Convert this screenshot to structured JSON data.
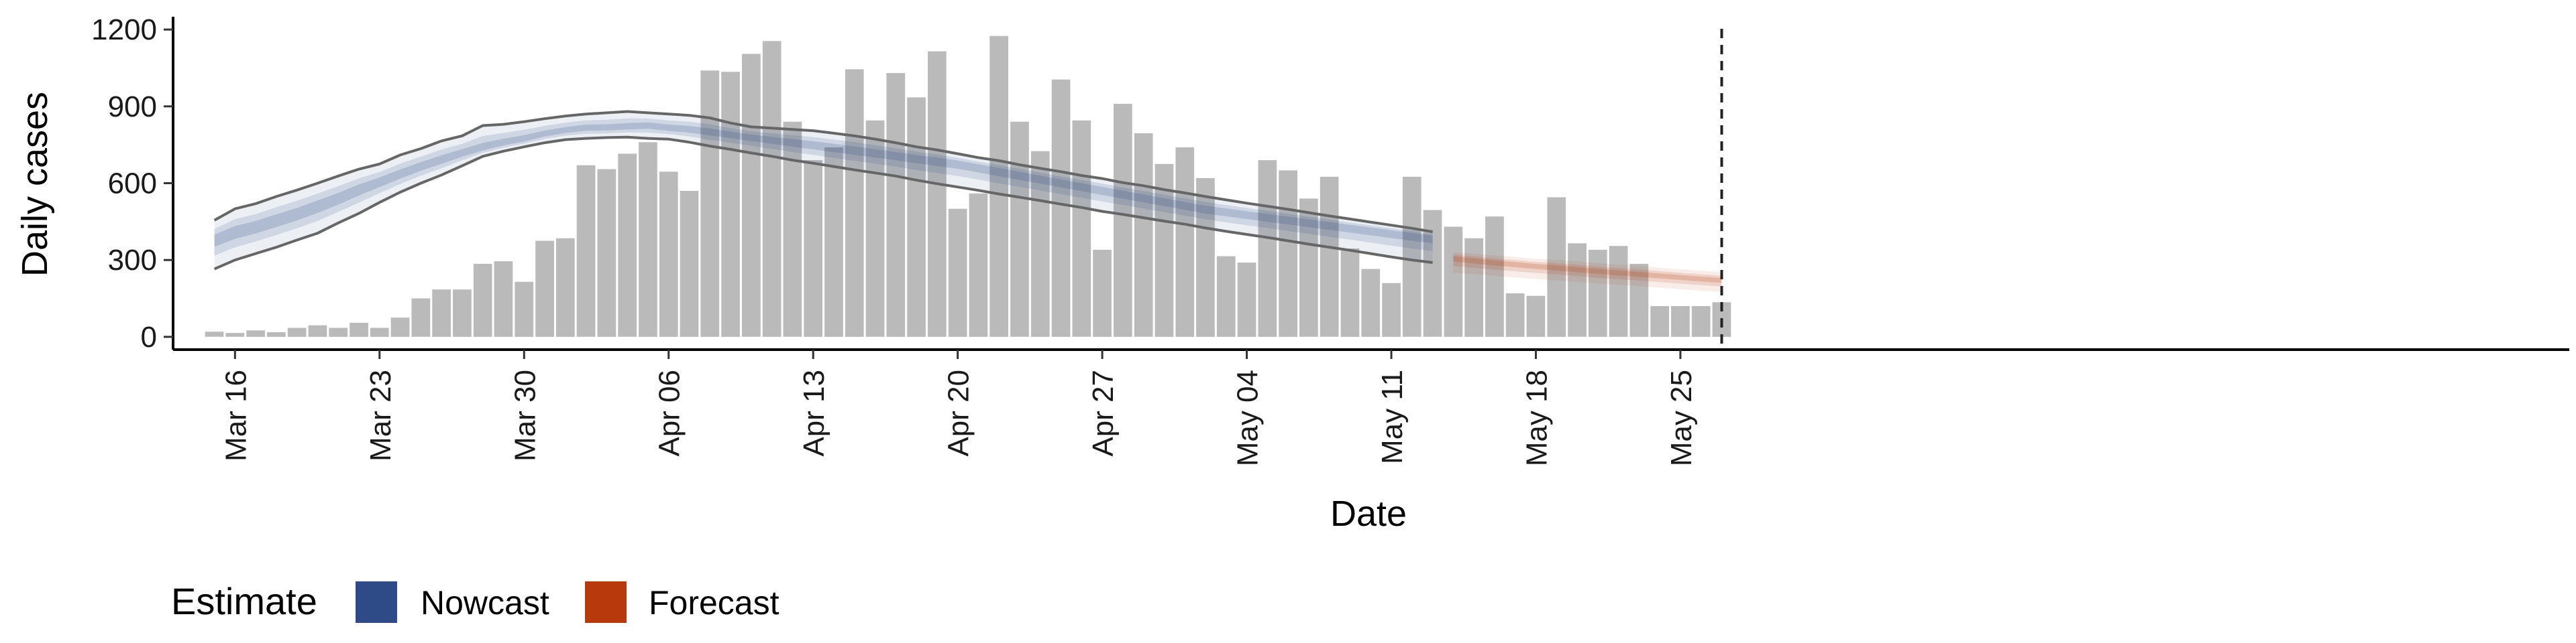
{
  "chart_data": {
    "type": "bar",
    "xlabel": "Date",
    "ylabel": "Daily cases",
    "ylim": [
      -50,
      1250
    ],
    "y_ticks": [
      0,
      300,
      600,
      900,
      1200
    ],
    "x_ticks": [
      {
        "date": "2020-03-16",
        "label": "Mar 16"
      },
      {
        "date": "2020-03-23",
        "label": "Mar 23"
      },
      {
        "date": "2020-03-30",
        "label": "Mar 30"
      },
      {
        "date": "2020-04-06",
        "label": "Apr 06"
      },
      {
        "date": "2020-04-13",
        "label": "Apr 13"
      },
      {
        "date": "2020-04-20",
        "label": "Apr 20"
      },
      {
        "date": "2020-04-27",
        "label": "Apr 27"
      },
      {
        "date": "2020-05-04",
        "label": "May 04"
      },
      {
        "date": "2020-05-11",
        "label": "May 11"
      },
      {
        "date": "2020-05-18",
        "label": "May 18"
      },
      {
        "date": "2020-05-25",
        "label": "May 25"
      }
    ],
    "bar_color": "#bababa",
    "bars": {
      "dates": [
        "2020-03-15",
        "2020-03-16",
        "2020-03-17",
        "2020-03-18",
        "2020-03-19",
        "2020-03-20",
        "2020-03-21",
        "2020-03-22",
        "2020-03-23",
        "2020-03-24",
        "2020-03-25",
        "2020-03-26",
        "2020-03-27",
        "2020-03-28",
        "2020-03-29",
        "2020-03-30",
        "2020-03-31",
        "2020-04-01",
        "2020-04-02",
        "2020-04-03",
        "2020-04-04",
        "2020-04-05",
        "2020-04-06",
        "2020-04-07",
        "2020-04-08",
        "2020-04-09",
        "2020-04-10",
        "2020-04-11",
        "2020-04-12",
        "2020-04-13",
        "2020-04-14",
        "2020-04-15",
        "2020-04-16",
        "2020-04-17",
        "2020-04-18",
        "2020-04-19",
        "2020-04-20",
        "2020-04-21",
        "2020-04-22",
        "2020-04-23",
        "2020-04-24",
        "2020-04-25",
        "2020-04-26",
        "2020-04-27",
        "2020-04-28",
        "2020-04-29",
        "2020-04-30",
        "2020-05-01",
        "2020-05-02",
        "2020-05-03",
        "2020-05-04",
        "2020-05-05",
        "2020-05-06",
        "2020-05-07",
        "2020-05-08",
        "2020-05-09",
        "2020-05-10",
        "2020-05-11",
        "2020-05-12",
        "2020-05-13",
        "2020-05-14",
        "2020-05-15",
        "2020-05-16",
        "2020-05-17",
        "2020-05-18",
        "2020-05-19",
        "2020-05-20",
        "2020-05-21",
        "2020-05-22",
        "2020-05-23",
        "2020-05-24",
        "2020-05-25",
        "2020-05-26",
        "2020-05-27"
      ],
      "values": [
        20,
        15,
        25,
        18,
        35,
        45,
        35,
        55,
        35,
        75,
        150,
        185,
        185,
        285,
        295,
        215,
        375,
        385,
        670,
        655,
        715,
        760,
        645,
        570,
        1040,
        1035,
        1105,
        1155,
        840,
        690,
        740,
        1045,
        845,
        1030,
        935,
        1115,
        500,
        560,
        1175,
        840,
        725,
        1005,
        845,
        340,
        910,
        795,
        675,
        740,
        620,
        315,
        290,
        690,
        650,
        540,
        625,
        345,
        265,
        210,
        625,
        495,
        430,
        385,
        470,
        170,
        160,
        545,
        365,
        340,
        355,
        285,
        120,
        120,
        120,
        135
      ]
    },
    "series": [
      {
        "name": "Nowcast",
        "color": "#2e4a87",
        "start_date": "2020-03-15",
        "median": [
          380,
          410,
          430,
          455,
          480,
          510,
          540,
          575,
          605,
          635,
          665,
          690,
          715,
          735,
          755,
          770,
          790,
          805,
          815,
          815,
          820,
          825,
          815,
          810,
          800,
          790,
          780,
          770,
          760,
          750,
          740,
          730,
          720,
          710,
          700,
          690,
          680,
          665,
          650,
          635,
          620,
          605,
          590,
          575,
          560,
          545,
          530,
          515,
          500,
          490,
          480,
          470,
          460,
          450,
          440,
          430,
          420,
          410,
          400,
          390
        ],
        "outer": [
          [
            265,
            455
          ],
          [
            300,
            500
          ],
          [
            325,
            520
          ],
          [
            350,
            548
          ],
          [
            378,
            573
          ],
          [
            405,
            600
          ],
          [
            445,
            628
          ],
          [
            482,
            655
          ],
          [
            525,
            675
          ],
          [
            565,
            710
          ],
          [
            600,
            735
          ],
          [
            632,
            765
          ],
          [
            668,
            785
          ],
          [
            705,
            825
          ],
          [
            725,
            830
          ],
          [
            742,
            840
          ],
          [
            758,
            852
          ],
          [
            770,
            862
          ],
          [
            775,
            870
          ],
          [
            778,
            875
          ],
          [
            780,
            880
          ],
          [
            775,
            875
          ],
          [
            772,
            870
          ],
          [
            760,
            865
          ],
          [
            745,
            855
          ],
          [
            732,
            835
          ],
          [
            718,
            820
          ],
          [
            705,
            815
          ],
          [
            690,
            810
          ],
          [
            678,
            805
          ],
          [
            665,
            795
          ],
          [
            652,
            785
          ],
          [
            640,
            772
          ],
          [
            628,
            758
          ],
          [
            612,
            742
          ],
          [
            598,
            730
          ],
          [
            585,
            715
          ],
          [
            572,
            700
          ],
          [
            558,
            688
          ],
          [
            545,
            672
          ],
          [
            532,
            658
          ],
          [
            518,
            645
          ],
          [
            505,
            630
          ],
          [
            490,
            618
          ],
          [
            478,
            602
          ],
          [
            465,
            590
          ],
          [
            452,
            575
          ],
          [
            440,
            562
          ],
          [
            425,
            548
          ],
          [
            412,
            535
          ],
          [
            400,
            522
          ],
          [
            388,
            510
          ],
          [
            375,
            498
          ],
          [
            362,
            485
          ],
          [
            350,
            472
          ],
          [
            338,
            460
          ],
          [
            325,
            448
          ],
          [
            312,
            436
          ],
          [
            300,
            424
          ],
          [
            290,
            410
          ]
        ]
      },
      {
        "name": "Forecast",
        "color": "#b83a0c",
        "start_date": "2020-05-14",
        "median": [
          310,
          300,
          292,
          285,
          278,
          272,
          265,
          258,
          252,
          246,
          240,
          234,
          228,
          222
        ],
        "outer": [
          [
            250,
            330
          ],
          [
            245,
            325
          ],
          [
            238,
            318
          ],
          [
            232,
            312
          ],
          [
            226,
            305
          ],
          [
            220,
            300
          ],
          [
            215,
            295
          ],
          [
            208,
            288
          ],
          [
            203,
            282
          ],
          [
            198,
            276
          ],
          [
            192,
            270
          ],
          [
            186,
            264
          ],
          [
            180,
            258
          ],
          [
            175,
            252
          ]
        ]
      }
    ],
    "vline_date": "2020-05-27",
    "legend": {
      "title": "Estimate",
      "position": "bottom-left",
      "items": [
        {
          "label": "Nowcast",
          "color": "#2e4a87"
        },
        {
          "label": "Forecast",
          "color": "#b83a0c"
        }
      ]
    },
    "grid": false
  }
}
